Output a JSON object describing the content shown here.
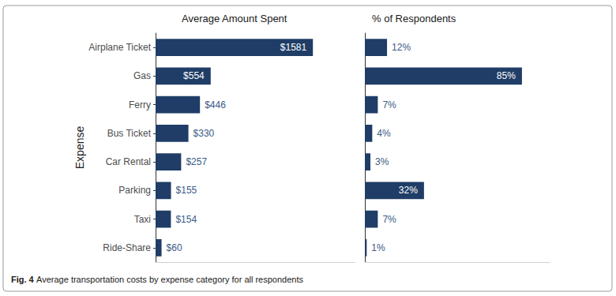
{
  "chart_data": [
    {
      "type": "bar",
      "title": "Average Amount Spent",
      "ylabel": "Expense",
      "orientation": "horizontal",
      "categories": [
        "Airplane Ticket",
        "Gas",
        "Ferry",
        "Bus Ticket",
        "Car Rental",
        "Parking",
        "Taxi",
        "Ride-Share"
      ],
      "values": [
        1581,
        554,
        446,
        330,
        257,
        155,
        154,
        60
      ],
      "value_labels": [
        "$1581",
        "$554",
        "$446",
        "$330",
        "$257",
        "$155",
        "$154",
        "$60"
      ],
      "color": "#1f3d66",
      "xlim": [
        0,
        2000
      ],
      "grid": false,
      "data_labels": true,
      "tick_labels": "y"
    },
    {
      "type": "bar",
      "title": "% of Respondents",
      "orientation": "horizontal",
      "categories": [
        "Airplane Ticket",
        "Gas",
        "Ferry",
        "Bus Ticket",
        "Car Rental",
        "Parking",
        "Taxi",
        "Ride-Share"
      ],
      "values": [
        12,
        85,
        7,
        4,
        3,
        32,
        7,
        1
      ],
      "value_labels": [
        "12%",
        "85%",
        "7%",
        "4%",
        "3%",
        "32%",
        "7%",
        "1%"
      ],
      "color": "#1f3d66",
      "xlim": [
        0,
        100
      ],
      "grid": false,
      "data_labels": true,
      "tick_labels": false
    }
  ],
  "caption": {
    "label": "Fig. 4",
    "text": "Average transportation costs by expense category for all respondents"
  }
}
